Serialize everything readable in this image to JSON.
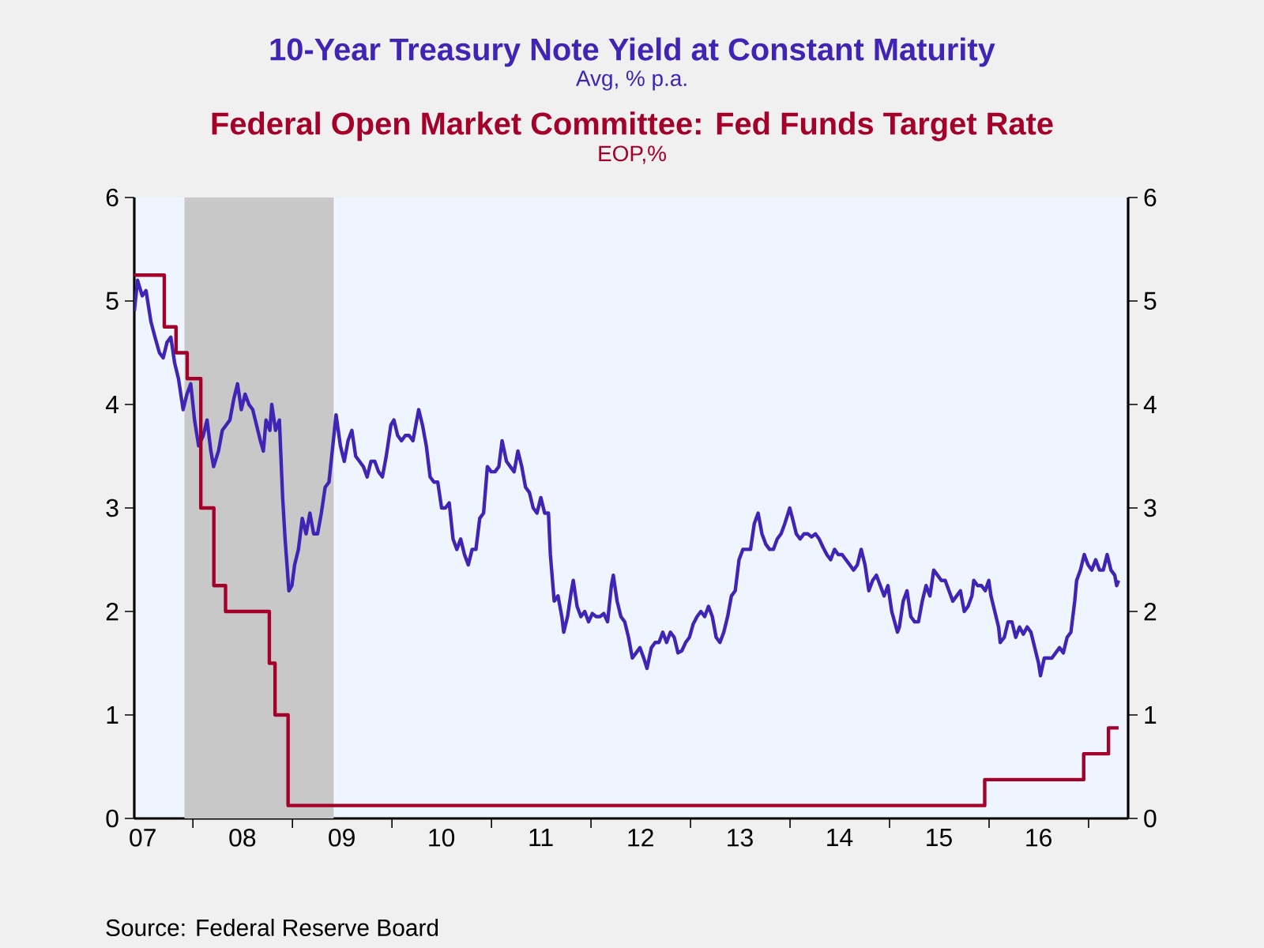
{
  "chart_data": {
    "type": "line",
    "legend": "top",
    "ylabel": "Avg, % p.a.",
    "y2label": "EOP,%",
    "xlim": [
      "2007-05-31",
      "2017-05-26"
    ],
    "ylim": [
      0,
      6
    ],
    "yticks": [
      0,
      1,
      2,
      3,
      4,
      5,
      6
    ],
    "y2lim": [
      0,
      6
    ],
    "y2ticks": [
      0,
      1,
      2,
      3,
      4,
      5,
      6
    ],
    "xticks": [
      {
        "value": "2007-07-01",
        "label": "07"
      },
      {
        "value": "2008-01-01",
        "label": null
      },
      {
        "value": "2008-07-01",
        "label": "08"
      },
      {
        "value": "2009-01-01",
        "label": null
      },
      {
        "value": "2009-07-01",
        "label": "09"
      },
      {
        "value": "2010-01-01",
        "label": null
      },
      {
        "value": "2010-07-01",
        "label": "10"
      },
      {
        "value": "2011-01-01",
        "label": null
      },
      {
        "value": "2011-07-01",
        "label": "11"
      },
      {
        "value": "2012-01-01",
        "label": null
      },
      {
        "value": "2012-07-01",
        "label": "12"
      },
      {
        "value": "2013-01-01",
        "label": null
      },
      {
        "value": "2013-07-01",
        "label": "13"
      },
      {
        "value": "2014-01-01",
        "label": null
      },
      {
        "value": "2014-07-01",
        "label": "14"
      },
      {
        "value": "2015-01-01",
        "label": null
      },
      {
        "value": "2015-07-01",
        "label": "15"
      },
      {
        "value": "2016-01-01",
        "label": null
      },
      {
        "value": "2016-07-01",
        "label": "16"
      },
      {
        "value": "2017-01-01",
        "label": null
      }
    ],
    "bands": [
      {
        "axis": "x",
        "from": "2007-12-01",
        "to": "2009-06-01",
        "color": "#c8c8c8"
      }
    ],
    "annotations": [
      "Source:  Federal Reserve Board"
    ],
    "series": [
      {
        "name": "10-Year Treasury Note Yield at Constant Maturity",
        "color": "#3f24b5",
        "axis": "y",
        "x": [
          "2007-05-31",
          "2007-06-12",
          "2007-06-29",
          "2007-07-13",
          "2007-07-31",
          "2007-08-15",
          "2007-08-31",
          "2007-09-14",
          "2007-09-28",
          "2007-10-12",
          "2007-10-26",
          "2007-11-09",
          "2007-11-26",
          "2007-12-10",
          "2007-12-24",
          "2008-01-07",
          "2008-01-22",
          "2008-02-08",
          "2008-02-22",
          "2008-03-07",
          "2008-03-17",
          "2008-04-04",
          "2008-04-18",
          "2008-05-02",
          "2008-05-16",
          "2008-05-30",
          "2008-06-13",
          "2008-06-27",
          "2008-07-11",
          "2008-07-25",
          "2008-08-08",
          "2008-08-22",
          "2008-09-05",
          "2008-09-16",
          "2008-09-26",
          "2008-10-10",
          "2008-10-17",
          "2008-10-31",
          "2008-11-14",
          "2008-11-26",
          "2008-12-05",
          "2008-12-19",
          "2008-12-30",
          "2009-01-09",
          "2009-01-23",
          "2009-02-06",
          "2009-02-20",
          "2009-03-06",
          "2009-03-20",
          "2009-04-03",
          "2009-04-17",
          "2009-05-01",
          "2009-05-15",
          "2009-05-29",
          "2009-06-10",
          "2009-06-26",
          "2009-07-10",
          "2009-07-24",
          "2009-08-07",
          "2009-08-21",
          "2009-09-04",
          "2009-09-18",
          "2009-10-02",
          "2009-10-16",
          "2009-10-30",
          "2009-11-13",
          "2009-11-27",
          "2009-12-11",
          "2009-12-28",
          "2010-01-08",
          "2010-01-22",
          "2010-02-05",
          "2010-02-19",
          "2010-03-05",
          "2010-03-19",
          "2010-04-02",
          "2010-04-09",
          "2010-04-23",
          "2010-05-07",
          "2010-05-21",
          "2010-06-04",
          "2010-06-18",
          "2010-07-02",
          "2010-07-16",
          "2010-07-30",
          "2010-08-13",
          "2010-08-27",
          "2010-09-10",
          "2010-09-24",
          "2010-10-08",
          "2010-10-22",
          "2010-11-05",
          "2010-11-19",
          "2010-12-03",
          "2010-12-17",
          "2010-12-31",
          "2011-01-14",
          "2011-01-28",
          "2011-02-09",
          "2011-02-25",
          "2011-03-11",
          "2011-03-25",
          "2011-04-08",
          "2011-04-22",
          "2011-05-06",
          "2011-05-20",
          "2011-06-03",
          "2011-06-17",
          "2011-07-01",
          "2011-07-15",
          "2011-07-29",
          "2011-08-05",
          "2011-08-19",
          "2011-09-02",
          "2011-09-16",
          "2011-09-23",
          "2011-10-07",
          "2011-10-21",
          "2011-10-28",
          "2011-11-11",
          "2011-11-25",
          "2011-12-09",
          "2011-12-23",
          "2012-01-06",
          "2012-01-20",
          "2012-02-03",
          "2012-02-17",
          "2012-03-02",
          "2012-03-16",
          "2012-03-23",
          "2012-04-06",
          "2012-04-20",
          "2012-05-04",
          "2012-05-18",
          "2012-06-01",
          "2012-06-15",
          "2012-06-29",
          "2012-07-13",
          "2012-07-25",
          "2012-08-10",
          "2012-08-24",
          "2012-09-07",
          "2012-09-21",
          "2012-10-05",
          "2012-10-19",
          "2012-11-02",
          "2012-11-16",
          "2012-11-30",
          "2012-12-14",
          "2012-12-28",
          "2013-01-11",
          "2013-01-25",
          "2013-02-08",
          "2013-02-22",
          "2013-03-08",
          "2013-03-22",
          "2013-04-05",
          "2013-04-19",
          "2013-05-03",
          "2013-05-17",
          "2013-05-31",
          "2013-06-14",
          "2013-06-28",
          "2013-07-12",
          "2013-07-26",
          "2013-08-09",
          "2013-08-23",
          "2013-09-06",
          "2013-09-20",
          "2013-10-04",
          "2013-10-18",
          "2013-11-01",
          "2013-11-15",
          "2013-11-29",
          "2013-12-13",
          "2013-12-31",
          "2014-01-10",
          "2014-01-24",
          "2014-02-07",
          "2014-02-21",
          "2014-03-07",
          "2014-03-21",
          "2014-04-04",
          "2014-04-18",
          "2014-05-02",
          "2014-05-16",
          "2014-05-30",
          "2014-06-13",
          "2014-06-27",
          "2014-07-11",
          "2014-07-25",
          "2014-08-08",
          "2014-08-22",
          "2014-09-05",
          "2014-09-19",
          "2014-10-03",
          "2014-10-17",
          "2014-10-31",
          "2014-11-14",
          "2014-11-28",
          "2014-12-12",
          "2014-12-26",
          "2015-01-09",
          "2015-01-30",
          "2015-02-06",
          "2015-02-20",
          "2015-03-06",
          "2015-03-20",
          "2015-04-03",
          "2015-04-17",
          "2015-05-01",
          "2015-05-15",
          "2015-05-29",
          "2015-06-12",
          "2015-06-26",
          "2015-07-10",
          "2015-07-24",
          "2015-08-07",
          "2015-08-21",
          "2015-09-04",
          "2015-09-18",
          "2015-10-02",
          "2015-10-16",
          "2015-10-30",
          "2015-11-06",
          "2015-11-20",
          "2015-12-04",
          "2015-12-18",
          "2015-12-31",
          "2016-01-08",
          "2016-01-22",
          "2016-02-05",
          "2016-02-11",
          "2016-02-26",
          "2016-03-11",
          "2016-03-25",
          "2016-04-08",
          "2016-04-22",
          "2016-05-06",
          "2016-05-20",
          "2016-06-03",
          "2016-06-17",
          "2016-07-01",
          "2016-07-08",
          "2016-07-22",
          "2016-08-05",
          "2016-08-19",
          "2016-09-02",
          "2016-09-16",
          "2016-09-30",
          "2016-10-14",
          "2016-10-28",
          "2016-11-11",
          "2016-11-18",
          "2016-12-02",
          "2016-12-16",
          "2016-12-30",
          "2017-01-13",
          "2017-01-27",
          "2017-02-10",
          "2017-02-24",
          "2017-03-10",
          "2017-03-24",
          "2017-04-07",
          "2017-04-14",
          "2017-04-21"
        ],
        "values": [
          4.9,
          5.2,
          5.05,
          5.1,
          4.8,
          4.65,
          4.5,
          4.45,
          4.6,
          4.65,
          4.4,
          4.25,
          3.95,
          4.1,
          4.2,
          3.85,
          3.6,
          3.7,
          3.85,
          3.55,
          3.4,
          3.55,
          3.75,
          3.8,
          3.85,
          4.05,
          4.2,
          3.95,
          4.1,
          4.0,
          3.95,
          3.8,
          3.65,
          3.55,
          3.85,
          3.75,
          4.0,
          3.75,
          3.85,
          3.1,
          2.7,
          2.2,
          2.25,
          2.45,
          2.6,
          2.9,
          2.75,
          2.95,
          2.75,
          2.75,
          2.95,
          3.2,
          3.25,
          3.6,
          3.9,
          3.6,
          3.45,
          3.65,
          3.75,
          3.5,
          3.45,
          3.4,
          3.3,
          3.45,
          3.45,
          3.35,
          3.3,
          3.5,
          3.8,
          3.85,
          3.7,
          3.65,
          3.7,
          3.7,
          3.65,
          3.85,
          3.95,
          3.8,
          3.6,
          3.3,
          3.25,
          3.25,
          3.0,
          3.0,
          3.05,
          2.7,
          2.6,
          2.7,
          2.55,
          2.45,
          2.6,
          2.6,
          2.9,
          2.95,
          3.4,
          3.35,
          3.35,
          3.4,
          3.65,
          3.45,
          3.4,
          3.35,
          3.55,
          3.4,
          3.2,
          3.15,
          3.0,
          2.95,
          3.1,
          2.95,
          2.95,
          2.55,
          2.1,
          2.15,
          1.95,
          1.8,
          1.95,
          2.2,
          2.3,
          2.05,
          1.95,
          2.0,
          1.9,
          1.98,
          1.95,
          1.95,
          1.98,
          1.9,
          2.25,
          2.35,
          2.1,
          1.95,
          1.9,
          1.75,
          1.55,
          1.6,
          1.65,
          1.55,
          1.45,
          1.65,
          1.7,
          1.7,
          1.8,
          1.7,
          1.8,
          1.75,
          1.6,
          1.62,
          1.7,
          1.75,
          1.88,
          1.95,
          2.0,
          1.95,
          2.05,
          1.95,
          1.75,
          1.7,
          1.8,
          1.95,
          2.15,
          2.2,
          2.5,
          2.6,
          2.6,
          2.6,
          2.85,
          2.95,
          2.75,
          2.65,
          2.6,
          2.6,
          2.7,
          2.75,
          2.85,
          3.0,
          2.9,
          2.75,
          2.7,
          2.75,
          2.75,
          2.72,
          2.75,
          2.7,
          2.62,
          2.55,
          2.5,
          2.6,
          2.55,
          2.55,
          2.5,
          2.45,
          2.4,
          2.45,
          2.6,
          2.45,
          2.2,
          2.3,
          2.35,
          2.25,
          2.15,
          2.25,
          2.0,
          1.8,
          1.85,
          2.1,
          2.2,
          1.95,
          1.9,
          1.9,
          2.1,
          2.25,
          2.15,
          2.4,
          2.35,
          2.3,
          2.3,
          2.2,
          2.1,
          2.15,
          2.2,
          2.0,
          2.05,
          2.15,
          2.3,
          2.25,
          2.25,
          2.2,
          2.3,
          2.15,
          2.0,
          1.85,
          1.7,
          1.75,
          1.9,
          1.9,
          1.75,
          1.85,
          1.78,
          1.85,
          1.8,
          1.65,
          1.5,
          1.38,
          1.55,
          1.55,
          1.55,
          1.6,
          1.65,
          1.6,
          1.75,
          1.8,
          2.1,
          2.3,
          2.4,
          2.55,
          2.45,
          2.4,
          2.5,
          2.4,
          2.4,
          2.55,
          2.4,
          2.35,
          2.25,
          2.3
        ]
      },
      {
        "name": "Federal Open Market Committee: Fed Funds Target Rate",
        "color": "#a4002a",
        "type": "step",
        "axis": "y2",
        "x": [
          "2007-05-31",
          "2007-09-18",
          "2007-10-31",
          "2007-12-11",
          "2008-01-30",
          "2008-03-18",
          "2008-04-30",
          "2008-10-08",
          "2008-10-29",
          "2008-12-16",
          "2015-12-16",
          "2016-12-14",
          "2017-03-15",
          "2017-04-21"
        ],
        "values": [
          5.25,
          4.75,
          4.5,
          4.25,
          3.0,
          2.25,
          2.0,
          1.5,
          1.0,
          0.125,
          0.375,
          0.625,
          0.875,
          0.875
        ]
      }
    ]
  }
}
